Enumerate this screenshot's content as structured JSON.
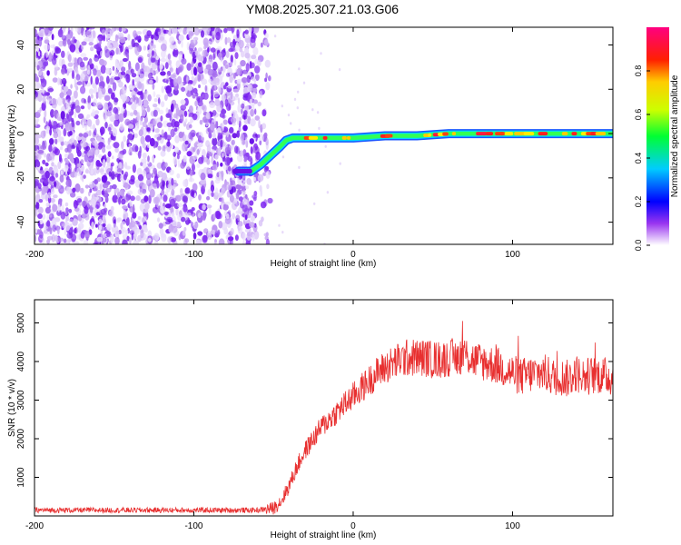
{
  "figure_title": "YM08.2025.307.21.03.G06",
  "chart_data": [
    {
      "type": "heatmap",
      "name": "spectrogram",
      "title": "YM08.2025.307.21.03.G06",
      "xlabel": "Height of straight line (km)",
      "ylabel": "Frequency (Hz)",
      "xlim": [
        -200,
        163
      ],
      "ylim": [
        -50,
        48
      ],
      "xticks": [
        -200,
        -100,
        0,
        100
      ],
      "yticks": [
        -40,
        -20,
        0,
        20,
        40
      ],
      "colorbar": {
        "label": "Normalized spectral amplitude",
        "range": [
          0,
          1
        ],
        "ticks": [
          0.0,
          0.2,
          0.4,
          0.6,
          0.8
        ],
        "tick_labels": [
          "0.0",
          "0.2",
          "0.4",
          "0.6",
          "0.8"
        ]
      },
      "noise_region_x": [
        -200,
        -52
      ],
      "signal_trace": {
        "x": [
          -72,
          -64,
          -58,
          -52,
          -46,
          -42,
          -38,
          -30,
          -20,
          0,
          20,
          40,
          60,
          80,
          100,
          120,
          140,
          163
        ],
        "y": [
          -17,
          -17,
          -14,
          -10,
          -6,
          -3,
          -2,
          -2,
          -2,
          -2,
          -1,
          -1,
          0,
          0,
          0,
          0,
          0,
          0
        ]
      }
    },
    {
      "type": "line",
      "name": "snr",
      "xlabel": "Height of straight line (km)",
      "ylabel": "SNR (10 * v/v)",
      "xlim": [
        -200,
        163
      ],
      "ylim": [
        0,
        5600
      ],
      "xticks": [
        -200,
        -100,
        0,
        100
      ],
      "yticks": [
        1000,
        2000,
        3000,
        4000,
        5000
      ],
      "series": [
        {
          "name": "SNR",
          "color": "#e83030",
          "x": [
            -200,
            -150,
            -100,
            -60,
            -50,
            -45,
            -40,
            -35,
            -30,
            -25,
            -20,
            -15,
            -10,
            -5,
            0,
            5,
            10,
            15,
            20,
            25,
            30,
            35,
            40,
            45,
            50,
            55,
            60,
            65,
            70,
            75,
            80,
            85,
            90,
            95,
            100,
            105,
            110,
            115,
            120,
            125,
            130,
            135,
            140,
            145,
            150,
            155,
            160,
            163
          ],
          "values": [
            150,
            150,
            150,
            150,
            200,
            400,
            800,
            1300,
            1700,
            2000,
            2300,
            2500,
            2700,
            2900,
            3100,
            3300,
            3500,
            3700,
            3850,
            3950,
            4050,
            4100,
            4100,
            4100,
            4050,
            4050,
            4100,
            4100,
            4200,
            4050,
            4000,
            3950,
            3900,
            3800,
            3700,
            3600,
            3650,
            3700,
            3700,
            3600,
            3600,
            3550,
            3700,
            3600,
            3650,
            3650,
            3600,
            3600
          ]
        }
      ]
    }
  ]
}
